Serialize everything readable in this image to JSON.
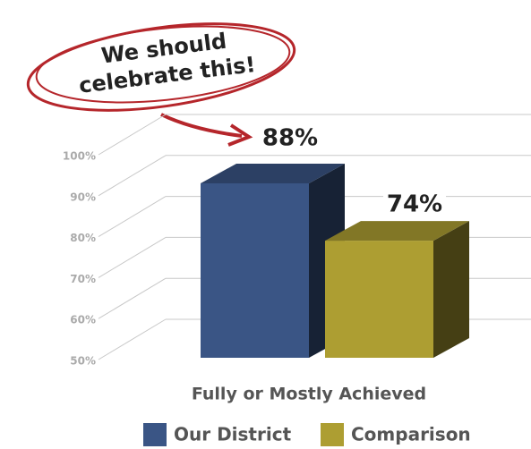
{
  "chart_data": {
    "type": "bar3d",
    "annotation": [
      "We should",
      "celebrate this!"
    ],
    "categories": [
      "Fully or Mostly Achieved"
    ],
    "series": [
      {
        "name": "Our District",
        "color": "#3a5585",
        "values": [
          88
        ],
        "value_labels": [
          "88%"
        ]
      },
      {
        "name": "Comparison",
        "color": "#ad9e32",
        "values": [
          74
        ],
        "value_labels": [
          "74%"
        ]
      }
    ],
    "ylim": [
      50,
      100
    ],
    "yticks": [
      {
        "value": 50,
        "label": "50%"
      },
      {
        "value": 60,
        "label": "60%"
      },
      {
        "value": 70,
        "label": "70%"
      },
      {
        "value": 80,
        "label": "80%"
      },
      {
        "value": 90,
        "label": "90%"
      },
      {
        "value": 100,
        "label": "100%"
      }
    ],
    "grid": true,
    "legend": "bottom"
  }
}
